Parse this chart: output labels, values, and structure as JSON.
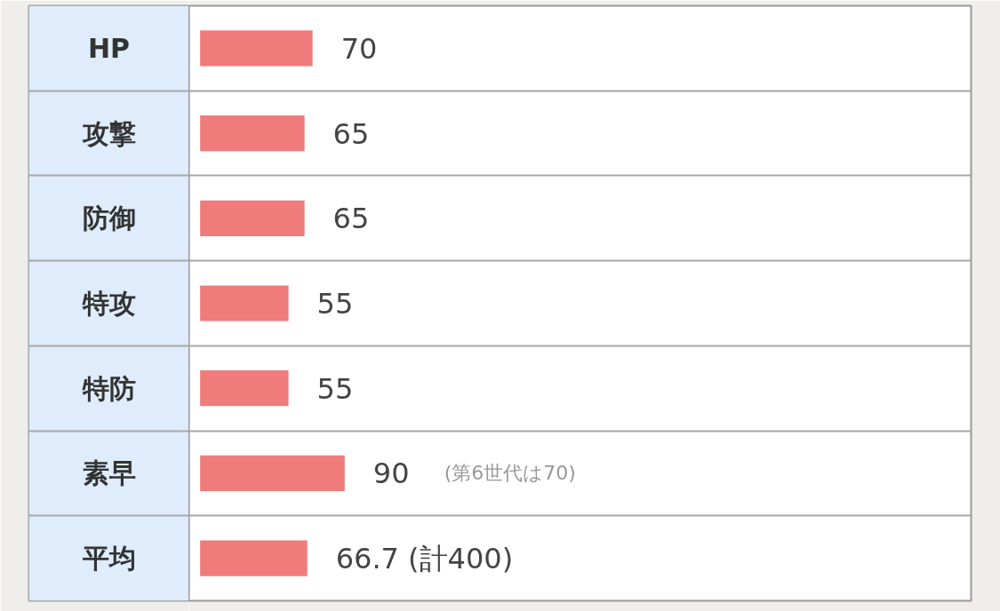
{
  "chart_data": {
    "type": "bar",
    "orientation": "horizontal",
    "categories": [
      "HP",
      "攻撃",
      "防御",
      "特攻",
      "特防",
      "素早",
      "平均"
    ],
    "values": [
      70,
      65,
      65,
      55,
      55,
      90,
      66.7
    ],
    "value_labels": [
      "70",
      "65",
      "65",
      "55",
      "55",
      "90",
      "66.7 (計400)"
    ],
    "color": "#ef7b7b",
    "xlim": [
      -7,
      480
    ],
    "tick_labels": false,
    "grid": "y",
    "annotations": [
      "(第6世代は70)"
    ]
  }
}
